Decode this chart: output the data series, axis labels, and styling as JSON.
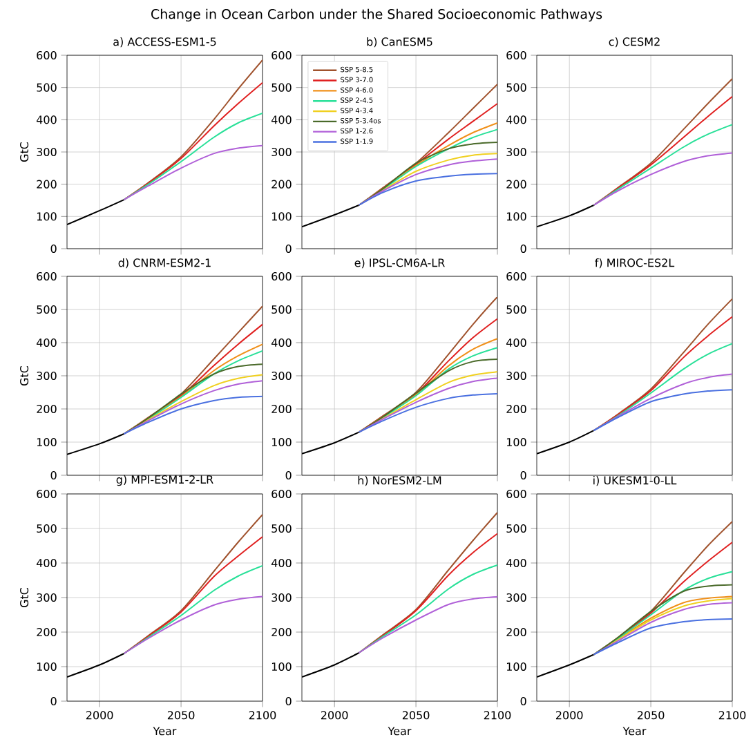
{
  "chart_data": [
    {
      "type": "other",
      "title": "Change in Ocean Carbon under the Shared Socioeconomic Pathways"
    },
    {
      "type": "line",
      "title": "a) ACCESS-ESM1-5",
      "ylabel": "GtC",
      "xlim": [
        1980,
        2100
      ],
      "ylim": [
        0,
        600
      ],
      "xticks": [
        2000,
        2050,
        2100
      ],
      "yticks": [
        0,
        100,
        200,
        300,
        400,
        500,
        600
      ],
      "grid": true,
      "tick_labels": "y",
      "series": [
        {
          "color": "#000000",
          "x": [
            1980,
            2000,
            2015
          ],
          "values": [
            75,
            118,
            152
          ]
        },
        {
          "color": "#a0522d",
          "x": [
            2015,
            2030,
            2050,
            2070,
            2085,
            2100
          ],
          "values": [
            152,
            205,
            285,
            400,
            495,
            585
          ]
        },
        {
          "color": "#e02020",
          "x": [
            2015,
            2030,
            2050,
            2070,
            2085,
            2100
          ],
          "values": [
            152,
            203,
            280,
            380,
            450,
            515
          ]
        },
        {
          "color": "#28e098",
          "x": [
            2015,
            2030,
            2050,
            2070,
            2085,
            2100
          ],
          "values": [
            152,
            200,
            270,
            345,
            390,
            420
          ]
        },
        {
          "color": "#b060d8",
          "x": [
            2015,
            2030,
            2050,
            2070,
            2085,
            2100
          ],
          "values": [
            152,
            195,
            250,
            295,
            312,
            320
          ]
        }
      ]
    },
    {
      "type": "line",
      "title": "b) CanESM5",
      "xlim": [
        1980,
        2100
      ],
      "ylim": [
        0,
        600
      ],
      "xticks": [
        2000,
        2050,
        2100
      ],
      "yticks": [
        0,
        100,
        200,
        300,
        400,
        500,
        600
      ],
      "grid": true,
      "tick_labels": "y",
      "legend": "top left",
      "series": [
        {
          "color": "#000000",
          "x": [
            1980,
            2000,
            2015
          ],
          "values": [
            68,
            105,
            135
          ]
        },
        {
          "name": "SSP 5-8.5",
          "color": "#a0522d",
          "x": [
            2015,
            2030,
            2050,
            2070,
            2085,
            2100
          ],
          "values": [
            135,
            190,
            265,
            360,
            435,
            510
          ]
        },
        {
          "name": "SSP 3-7.0",
          "color": "#e02020",
          "x": [
            2015,
            2030,
            2050,
            2070,
            2085,
            2100
          ],
          "values": [
            135,
            188,
            262,
            340,
            395,
            450
          ]
        },
        {
          "name": "SSP 4-6.0",
          "color": "#f0901a",
          "x": [
            2015,
            2030,
            2050,
            2070,
            2085,
            2100
          ],
          "values": [
            135,
            187,
            258,
            320,
            360,
            390
          ]
        },
        {
          "name": "SSP 2-4.5",
          "color": "#28e098",
          "x": [
            2015,
            2030,
            2050,
            2070,
            2085,
            2100
          ],
          "values": [
            135,
            185,
            255,
            310,
            345,
            370
          ]
        },
        {
          "name": "SSP 4-3.4",
          "color": "#f0d020",
          "x": [
            2015,
            2030,
            2050,
            2070,
            2085,
            2100
          ],
          "values": [
            135,
            182,
            240,
            275,
            290,
            295
          ]
        },
        {
          "name": "SSP 5-3.4os",
          "color": "#4a6a2a",
          "x": [
            2015,
            2030,
            2050,
            2070,
            2085,
            2100
          ],
          "values": [
            135,
            187,
            265,
            310,
            325,
            330
          ]
        },
        {
          "name": "SSP 1-2.6",
          "color": "#b060d8",
          "x": [
            2015,
            2030,
            2050,
            2070,
            2085,
            2100
          ],
          "values": [
            135,
            180,
            230,
            260,
            272,
            278
          ]
        },
        {
          "name": "SSP 1-1.9",
          "color": "#4a70e0",
          "x": [
            2015,
            2030,
            2050,
            2070,
            2085,
            2100
          ],
          "values": [
            135,
            175,
            210,
            225,
            231,
            233
          ]
        }
      ]
    },
    {
      "type": "line",
      "title": "c) CESM2",
      "xlim": [
        1980,
        2100
      ],
      "ylim": [
        0,
        600
      ],
      "xticks": [
        2000,
        2050,
        2100
      ],
      "yticks": [
        0,
        100,
        200,
        300,
        400,
        500,
        600
      ],
      "grid": true,
      "tick_labels": "y",
      "series": [
        {
          "color": "#000000",
          "x": [
            1980,
            2000,
            2015
          ],
          "values": [
            68,
            102,
            135
          ]
        },
        {
          "color": "#a0522d",
          "x": [
            2015,
            2030,
            2050,
            2070,
            2085,
            2100
          ],
          "values": [
            135,
            190,
            265,
            370,
            450,
            527
          ]
        },
        {
          "color": "#e02020",
          "x": [
            2015,
            2030,
            2050,
            2070,
            2085,
            2100
          ],
          "values": [
            135,
            188,
            260,
            345,
            410,
            472
          ]
        },
        {
          "color": "#28e098",
          "x": [
            2015,
            2030,
            2050,
            2070,
            2085,
            2100
          ],
          "values": [
            135,
            185,
            250,
            315,
            355,
            385
          ]
        },
        {
          "color": "#b060d8",
          "x": [
            2015,
            2030,
            2050,
            2070,
            2085,
            2100
          ],
          "values": [
            135,
            180,
            230,
            270,
            288,
            297
          ]
        }
      ]
    },
    {
      "type": "line",
      "title": "d) CNRM-ESM2-1",
      "ylabel": "GtC",
      "xlim": [
        1980,
        2100
      ],
      "ylim": [
        0,
        600
      ],
      "xticks": [
        2000,
        2050,
        2100
      ],
      "yticks": [
        0,
        100,
        200,
        300,
        400,
        500,
        600
      ],
      "grid": true,
      "tick_labels": "y",
      "series": [
        {
          "color": "#000000",
          "x": [
            1980,
            2000,
            2015
          ],
          "values": [
            63,
            95,
            125
          ]
        },
        {
          "color": "#a0522d",
          "x": [
            2015,
            2030,
            2050,
            2070,
            2085,
            2100
          ],
          "values": [
            125,
            175,
            245,
            350,
            430,
            510
          ]
        },
        {
          "color": "#e02020",
          "x": [
            2015,
            2030,
            2050,
            2070,
            2085,
            2100
          ],
          "values": [
            125,
            173,
            240,
            330,
            395,
            455
          ]
        },
        {
          "color": "#f0901a",
          "x": [
            2015,
            2030,
            2050,
            2070,
            2085,
            2100
          ],
          "values": [
            125,
            172,
            237,
            315,
            360,
            395
          ]
        },
        {
          "color": "#28e098",
          "x": [
            2015,
            2030,
            2050,
            2070,
            2085,
            2100
          ],
          "values": [
            125,
            170,
            235,
            305,
            345,
            375
          ]
        },
        {
          "color": "#f0d020",
          "x": [
            2015,
            2030,
            2050,
            2070,
            2085,
            2100
          ],
          "values": [
            125,
            168,
            222,
            270,
            292,
            303
          ]
        },
        {
          "color": "#4a6a2a",
          "x": [
            2015,
            2030,
            2050,
            2070,
            2085,
            2100
          ],
          "values": [
            125,
            173,
            245,
            305,
            328,
            335
          ]
        },
        {
          "color": "#b060d8",
          "x": [
            2015,
            2030,
            2050,
            2070,
            2085,
            2100
          ],
          "values": [
            125,
            165,
            215,
            255,
            275,
            285
          ]
        },
        {
          "color": "#4a70e0",
          "x": [
            2015,
            2030,
            2050,
            2070,
            2085,
            2100
          ],
          "values": [
            125,
            160,
            200,
            225,
            235,
            238
          ]
        }
      ]
    },
    {
      "type": "line",
      "title": "e) IPSL-CM6A-LR",
      "xlim": [
        1980,
        2100
      ],
      "ylim": [
        0,
        600
      ],
      "xticks": [
        2000,
        2050,
        2100
      ],
      "yticks": [
        0,
        100,
        200,
        300,
        400,
        500,
        600
      ],
      "grid": true,
      "tick_labels": "y",
      "series": [
        {
          "color": "#000000",
          "x": [
            1980,
            2000,
            2015
          ],
          "values": [
            65,
            98,
            130
          ]
        },
        {
          "color": "#a0522d",
          "x": [
            2015,
            2030,
            2050,
            2070,
            2085,
            2100
          ],
          "values": [
            130,
            180,
            250,
            365,
            455,
            538
          ]
        },
        {
          "color": "#e02020",
          "x": [
            2015,
            2030,
            2050,
            2070,
            2085,
            2100
          ],
          "values": [
            130,
            178,
            245,
            345,
            415,
            472
          ]
        },
        {
          "color": "#f0901a",
          "x": [
            2015,
            2030,
            2050,
            2070,
            2085,
            2100
          ],
          "values": [
            130,
            177,
            242,
            330,
            380,
            412
          ]
        },
        {
          "color": "#28e098",
          "x": [
            2015,
            2030,
            2050,
            2070,
            2085,
            2100
          ],
          "values": [
            130,
            175,
            240,
            320,
            360,
            385
          ]
        },
        {
          "color": "#f0d020",
          "x": [
            2015,
            2030,
            2050,
            2070,
            2085,
            2100
          ],
          "values": [
            130,
            172,
            228,
            280,
            302,
            312
          ]
        },
        {
          "color": "#4a6a2a",
          "x": [
            2015,
            2030,
            2050,
            2070,
            2085,
            2100
          ],
          "values": [
            130,
            177,
            248,
            315,
            343,
            350
          ]
        },
        {
          "color": "#b060d8",
          "x": [
            2015,
            2030,
            2050,
            2070,
            2085,
            2100
          ],
          "values": [
            130,
            170,
            220,
            262,
            283,
            293
          ]
        },
        {
          "color": "#4a70e0",
          "x": [
            2015,
            2030,
            2050,
            2070,
            2085,
            2100
          ],
          "values": [
            130,
            165,
            205,
            232,
            242,
            246
          ]
        }
      ]
    },
    {
      "type": "line",
      "title": "f) MIROC-ES2L",
      "xlim": [
        1980,
        2100
      ],
      "ylim": [
        0,
        600
      ],
      "xticks": [
        2000,
        2050,
        2100
      ],
      "yticks": [
        0,
        100,
        200,
        300,
        400,
        500,
        600
      ],
      "grid": true,
      "tick_labels": "y",
      "series": [
        {
          "color": "#000000",
          "x": [
            1980,
            2000,
            2015
          ],
          "values": [
            65,
            100,
            135
          ]
        },
        {
          "color": "#a0522d",
          "x": [
            2015,
            2030,
            2050,
            2070,
            2085,
            2100
          ],
          "values": [
            135,
            185,
            260,
            370,
            455,
            532
          ]
        },
        {
          "color": "#e02020",
          "x": [
            2015,
            2030,
            2050,
            2070,
            2085,
            2100
          ],
          "values": [
            135,
            183,
            255,
            355,
            420,
            478
          ]
        },
        {
          "color": "#28e098",
          "x": [
            2015,
            2030,
            2050,
            2070,
            2085,
            2100
          ],
          "values": [
            135,
            180,
            248,
            320,
            365,
            397
          ]
        },
        {
          "color": "#b060d8",
          "x": [
            2015,
            2030,
            2050,
            2070,
            2085,
            2100
          ],
          "values": [
            135,
            178,
            232,
            275,
            295,
            305
          ]
        },
        {
          "color": "#4a70e0",
          "x": [
            2015,
            2030,
            2050,
            2070,
            2085,
            2100
          ],
          "values": [
            135,
            175,
            222,
            245,
            254,
            258
          ]
        }
      ]
    },
    {
      "type": "line",
      "title": "g) MPI-ESM1-2-LR",
      "xlabel": "Year",
      "ylabel": "GtC",
      "xlim": [
        1980,
        2100
      ],
      "ylim": [
        0,
        600
      ],
      "xticks": [
        2000,
        2050,
        2100
      ],
      "yticks": [
        0,
        100,
        200,
        300,
        400,
        500,
        600
      ],
      "grid": true,
      "series": [
        {
          "color": "#000000",
          "x": [
            1980,
            2000,
            2015
          ],
          "values": [
            70,
            105,
            138
          ]
        },
        {
          "color": "#a0522d",
          "x": [
            2015,
            2030,
            2050,
            2070,
            2085,
            2100
          ],
          "values": [
            138,
            190,
            262,
            375,
            460,
            540
          ]
        },
        {
          "color": "#e02020",
          "x": [
            2015,
            2030,
            2050,
            2070,
            2085,
            2100
          ],
          "values": [
            138,
            188,
            258,
            360,
            420,
            476
          ]
        },
        {
          "color": "#28e098",
          "x": [
            2015,
            2030,
            2050,
            2070,
            2085,
            2100
          ],
          "values": [
            138,
            185,
            248,
            320,
            362,
            392
          ]
        },
        {
          "color": "#b060d8",
          "x": [
            2015,
            2030,
            2050,
            2070,
            2085,
            2100
          ],
          "values": [
            138,
            182,
            235,
            278,
            295,
            303
          ]
        }
      ]
    },
    {
      "type": "line",
      "title": "h) NorESM2-LM",
      "xlabel": "Year",
      "xlim": [
        1980,
        2100
      ],
      "ylim": [
        0,
        600
      ],
      "xticks": [
        2000,
        2050,
        2100
      ],
      "yticks": [
        0,
        100,
        200,
        300,
        400,
        500,
        600
      ],
      "grid": true,
      "series": [
        {
          "color": "#000000",
          "x": [
            1980,
            2000,
            2015
          ],
          "values": [
            70,
            105,
            140
          ]
        },
        {
          "color": "#a0522d",
          "x": [
            2015,
            2030,
            2050,
            2070,
            2085,
            2100
          ],
          "values": [
            140,
            193,
            265,
            380,
            465,
            546
          ]
        },
        {
          "color": "#e02020",
          "x": [
            2015,
            2030,
            2050,
            2070,
            2085,
            2100
          ],
          "values": [
            140,
            190,
            262,
            365,
            430,
            485
          ]
        },
        {
          "color": "#28e098",
          "x": [
            2015,
            2030,
            2050,
            2070,
            2085,
            2100
          ],
          "values": [
            140,
            188,
            250,
            325,
            367,
            394
          ]
        },
        {
          "color": "#b060d8",
          "x": [
            2015,
            2030,
            2050,
            2070,
            2085,
            2100
          ],
          "values": [
            140,
            184,
            235,
            280,
            296,
            302
          ]
        }
      ]
    },
    {
      "type": "line",
      "title": "i) UKESM1-0-LL",
      "xlabel": "Year",
      "xlim": [
        1980,
        2100
      ],
      "ylim": [
        0,
        600
      ],
      "xticks": [
        2000,
        2050,
        2100
      ],
      "yticks": [
        0,
        100,
        200,
        300,
        400,
        500,
        600
      ],
      "grid": true,
      "series": [
        {
          "color": "#000000",
          "x": [
            1980,
            2000,
            2015
          ],
          "values": [
            70,
            105,
            135
          ]
        },
        {
          "color": "#a0522d",
          "x": [
            2015,
            2030,
            2050,
            2070,
            2085,
            2100
          ],
          "values": [
            135,
            185,
            260,
            370,
            450,
            520
          ]
        },
        {
          "color": "#e02020",
          "x": [
            2015,
            2030,
            2050,
            2070,
            2085,
            2100
          ],
          "values": [
            135,
            183,
            255,
            345,
            405,
            460
          ]
        },
        {
          "color": "#f0901a",
          "x": [
            2015,
            2030,
            2050,
            2070,
            2085,
            2100
          ],
          "values": [
            135,
            180,
            240,
            285,
            298,
            303
          ]
        },
        {
          "color": "#28e098",
          "x": [
            2015,
            2030,
            2050,
            2070,
            2085,
            2100
          ],
          "values": [
            135,
            182,
            250,
            320,
            355,
            375
          ]
        },
        {
          "color": "#f0d020",
          "x": [
            2015,
            2030,
            2050,
            2070,
            2085,
            2100
          ],
          "values": [
            135,
            178,
            235,
            275,
            290,
            297
          ]
        },
        {
          "color": "#4a6a2a",
          "x": [
            2015,
            2030,
            2050,
            2070,
            2085,
            2100
          ],
          "values": [
            135,
            185,
            260,
            318,
            333,
            337
          ]
        },
        {
          "color": "#b060d8",
          "x": [
            2015,
            2030,
            2050,
            2070,
            2085,
            2100
          ],
          "values": [
            135,
            175,
            228,
            265,
            280,
            285
          ]
        },
        {
          "color": "#4a70e0",
          "x": [
            2015,
            2030,
            2050,
            2070,
            2085,
            2100
          ],
          "values": [
            135,
            170,
            212,
            230,
            236,
            238
          ]
        }
      ]
    }
  ]
}
